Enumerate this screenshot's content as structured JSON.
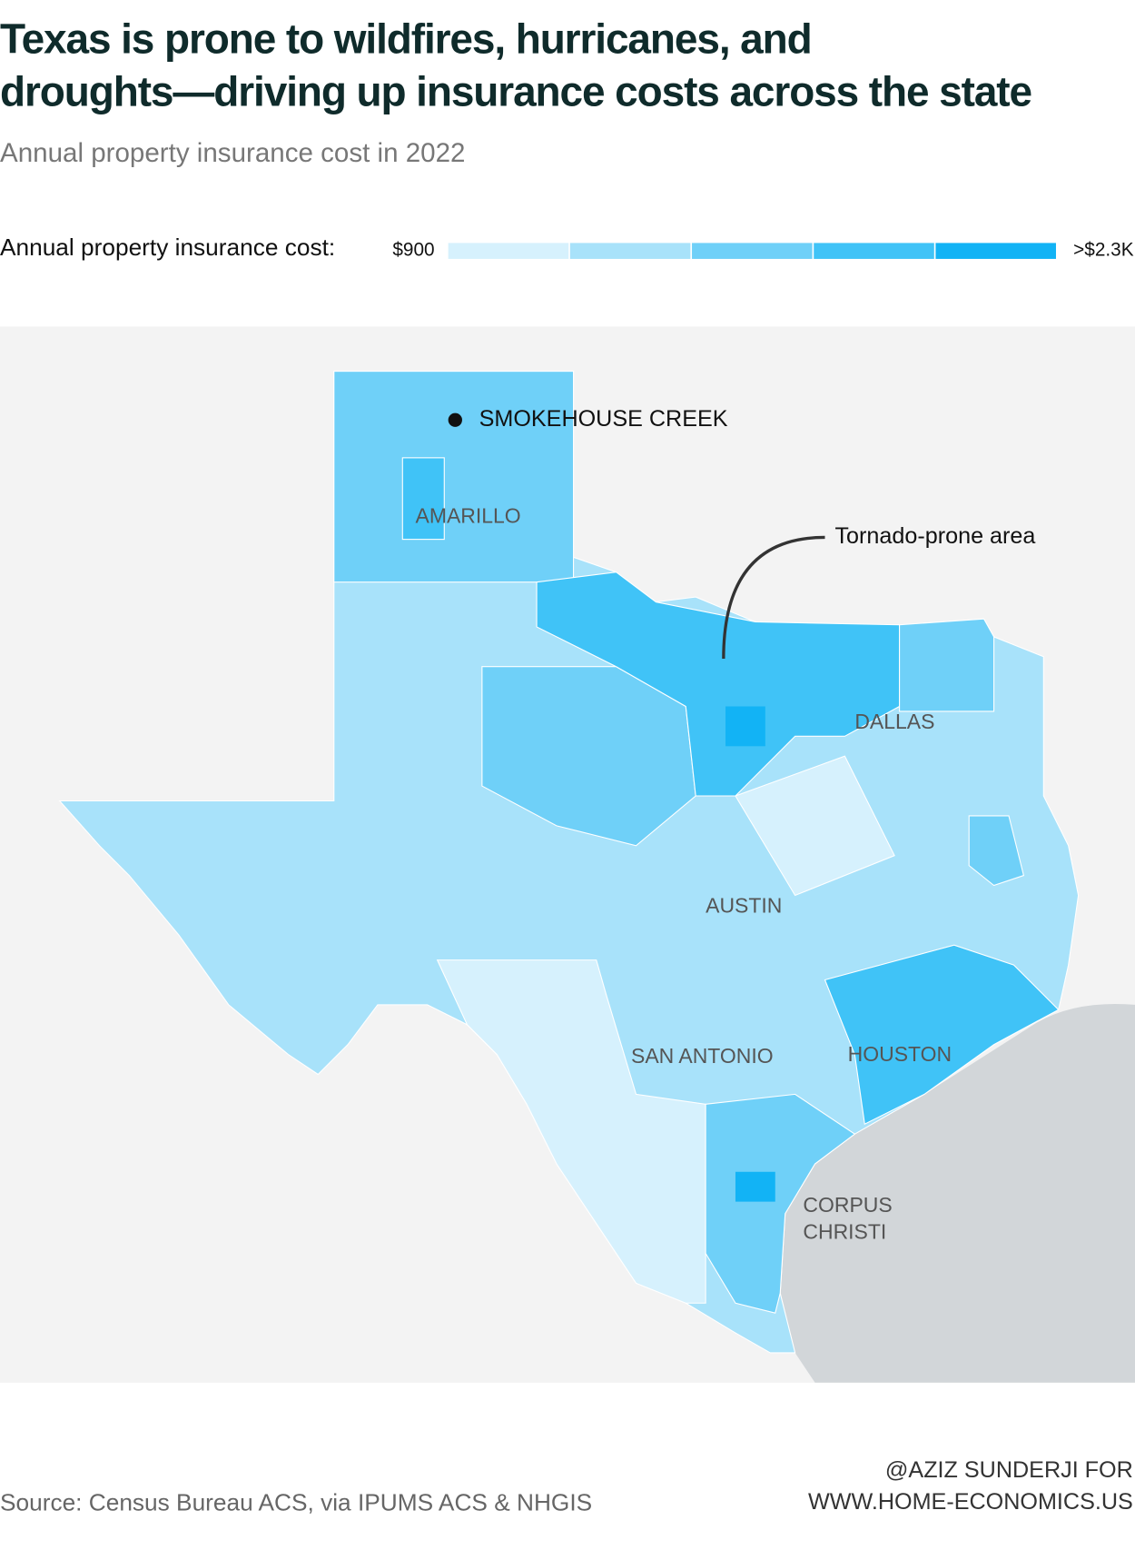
{
  "header": {
    "title": [
      "Texas is prone to wildfires, hurricanes, and",
      "droughts—driving up insurance costs across the state"
    ],
    "subtitle": "Annual property insurance cost in 2022"
  },
  "legend": {
    "label": "Annual property insurance cost:",
    "min": "$900",
    "max": ">$2.3K",
    "colors": [
      "#d6f1fd",
      "#a8e2fa",
      "#6fd0f8",
      "#40c3f7",
      "#12b3f5"
    ]
  },
  "map": {
    "labels": {
      "smokehouse": "SMOKEHOUSE CREEK",
      "amarillo": "AMARILLO",
      "dallas": "DALLAS",
      "austin": "AUSTIN",
      "san_antonio": "SAN ANTONIO",
      "houston": "HOUSTON",
      "corpus_christi": [
        "CORPUS",
        "CHRISTI"
      ]
    },
    "annotation": "Tornado-prone area"
  },
  "footer": {
    "source": "Source: Census Bureau ACS, via IPUMS ACS & NHGIS",
    "credit": [
      "@AZIZ SUNDERJI FOR",
      "WWW.HOME-ECONOMICS.US"
    ]
  }
}
